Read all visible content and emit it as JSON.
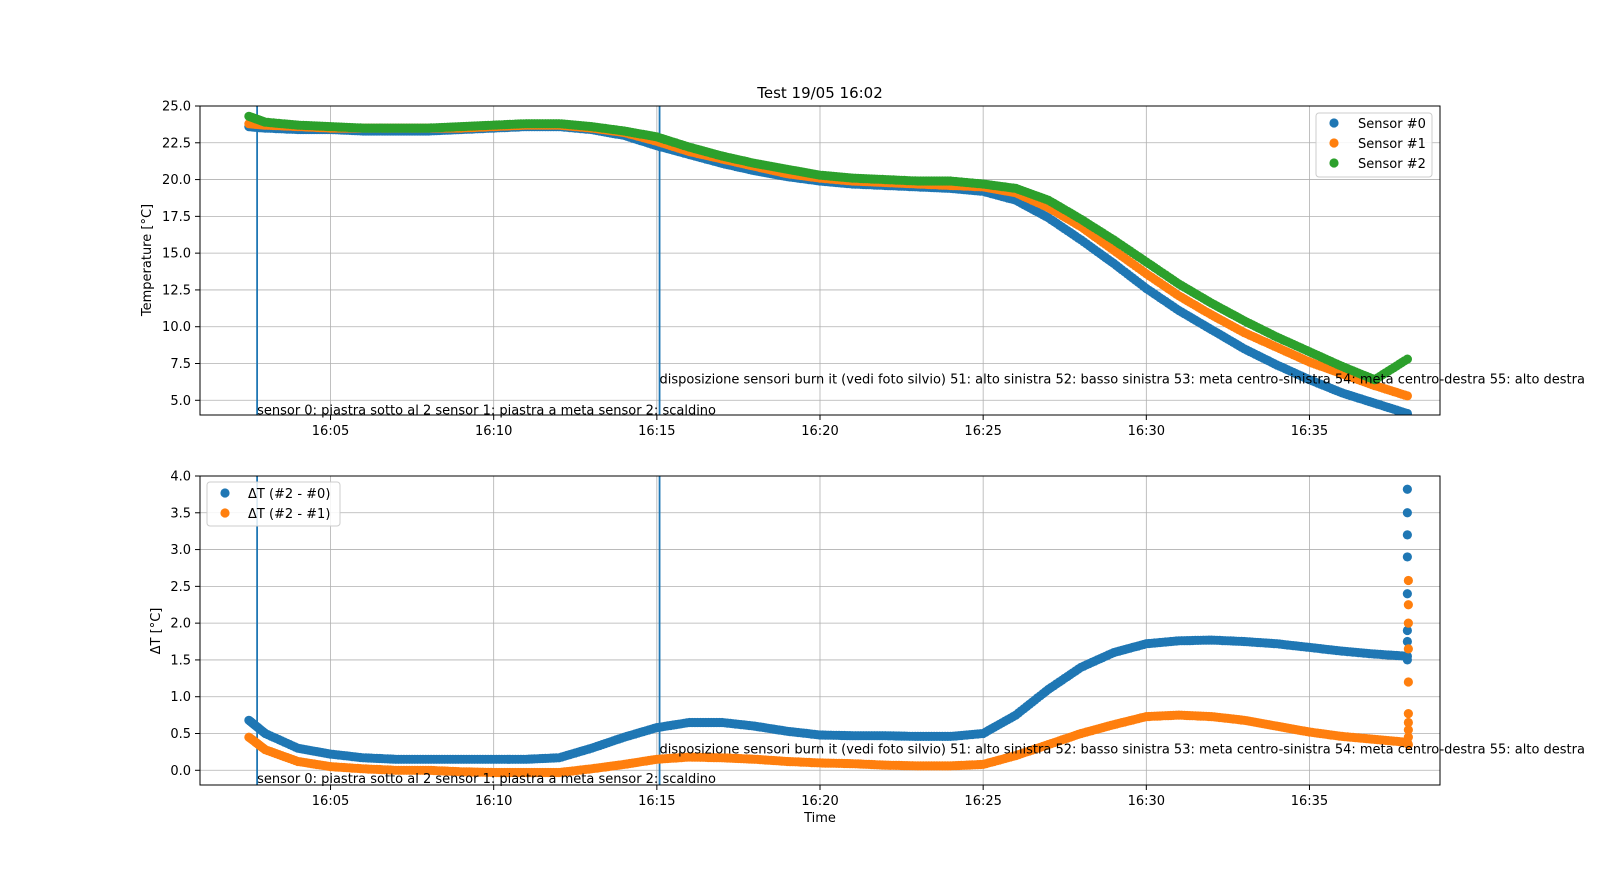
{
  "chart_data": [
    {
      "type": "scatter",
      "title": "Test 19/05 16:02",
      "xlabel": "",
      "ylabel": "Temperature [°C]",
      "xlim": [
        "16:01",
        "16:39"
      ],
      "ylim": [
        4.0,
        25.0
      ],
      "yticks": [
        "5.0",
        "7.5",
        "10.0",
        "12.5",
        "15.0",
        "17.5",
        "20.0",
        "22.5",
        "25.0"
      ],
      "xticks": [
        "16:05",
        "16:10",
        "16:15",
        "16:20",
        "16:25",
        "16:30",
        "16:35"
      ],
      "grid": true,
      "legend": "top-right",
      "x": [
        "16:02:30",
        "16:03",
        "16:04",
        "16:05",
        "16:06",
        "16:07",
        "16:08",
        "16:09",
        "16:10",
        "16:11",
        "16:12",
        "16:13",
        "16:14",
        "16:15",
        "16:16",
        "16:17",
        "16:18",
        "16:19",
        "16:20",
        "16:21",
        "16:22",
        "16:23",
        "16:24",
        "16:25",
        "16:26",
        "16:27",
        "16:28",
        "16:29",
        "16:30",
        "16:31",
        "16:32",
        "16:33",
        "16:34",
        "16:35",
        "16:36",
        "16:37",
        "16:38"
      ],
      "series": [
        {
          "name": "Sensor #0",
          "color": "#1f77b4",
          "values": [
            23.6,
            23.5,
            23.4,
            23.4,
            23.3,
            23.3,
            23.3,
            23.4,
            23.5,
            23.6,
            23.6,
            23.4,
            23.0,
            22.3,
            21.7,
            21.1,
            20.6,
            20.2,
            19.9,
            19.7,
            19.6,
            19.5,
            19.4,
            19.2,
            18.6,
            17.4,
            15.9,
            14.3,
            12.6,
            11.1,
            9.8,
            8.5,
            7.4,
            6.4,
            5.5,
            4.8,
            4.1
          ]
        },
        {
          "name": "Sensor #1",
          "color": "#ff7f0e",
          "values": [
            23.8,
            23.7,
            23.6,
            23.5,
            23.5,
            23.5,
            23.5,
            23.5,
            23.6,
            23.7,
            23.7,
            23.5,
            23.2,
            22.6,
            21.9,
            21.4,
            20.9,
            20.4,
            20.1,
            19.9,
            19.8,
            19.7,
            19.6,
            19.5,
            19.1,
            18.1,
            16.8,
            15.2,
            13.6,
            12.1,
            10.8,
            9.6,
            8.6,
            7.6,
            6.8,
            6.0,
            5.3
          ]
        },
        {
          "name": "Sensor #2",
          "color": "#2ca02c",
          "values": [
            24.3,
            23.9,
            23.7,
            23.6,
            23.5,
            23.5,
            23.5,
            23.6,
            23.7,
            23.8,
            23.8,
            23.6,
            23.3,
            22.9,
            22.2,
            21.6,
            21.1,
            20.7,
            20.3,
            20.1,
            20.0,
            19.9,
            19.9,
            19.7,
            19.4,
            18.6,
            17.3,
            15.9,
            14.4,
            12.9,
            11.6,
            10.4,
            9.3,
            8.3,
            7.3,
            6.4,
            7.8
          ]
        }
      ],
      "annotations": [
        {
          "text": "sensor 0: piastra sotto al 2 sensor 1: piastra a meta sensor 2: scaldino",
          "x": "16:02:45",
          "y": 3.9
        },
        {
          "text": "disposizione sensori burn it (vedi foto silvio) 51: alto sinistra 52: basso sinistra 53: meta centro-sinistra 54: meta centro-destra 55: alto destra",
          "x": "16:15:05",
          "y": 6.0
        }
      ],
      "vlines": [
        "16:02:45",
        "16:15:05"
      ]
    },
    {
      "type": "scatter",
      "title": "",
      "xlabel": "Time",
      "ylabel": "ΔT [°C]",
      "xlim": [
        "16:01",
        "16:39"
      ],
      "ylim": [
        -0.2,
        4.0
      ],
      "yticks": [
        "0.0",
        "0.5",
        "1.0",
        "1.5",
        "2.0",
        "2.5",
        "3.0",
        "3.5",
        "4.0"
      ],
      "xticks": [
        "16:05",
        "16:10",
        "16:15",
        "16:20",
        "16:25",
        "16:30",
        "16:35"
      ],
      "grid": true,
      "legend": "top-left",
      "x": [
        "16:02:30",
        "16:03",
        "16:04",
        "16:05",
        "16:06",
        "16:07",
        "16:08",
        "16:09",
        "16:10",
        "16:11",
        "16:12",
        "16:13",
        "16:14",
        "16:15",
        "16:16",
        "16:17",
        "16:18",
        "16:19",
        "16:20",
        "16:21",
        "16:22",
        "16:23",
        "16:24",
        "16:25",
        "16:26",
        "16:27",
        "16:28",
        "16:29",
        "16:30",
        "16:31",
        "16:32",
        "16:33",
        "16:34",
        "16:35",
        "16:36",
        "16:37",
        "16:38"
      ],
      "series": [
        {
          "name": "ΔT (#2 - #0)",
          "color": "#1f77b4",
          "values": [
            0.68,
            0.5,
            0.3,
            0.22,
            0.17,
            0.15,
            0.15,
            0.15,
            0.15,
            0.15,
            0.17,
            0.3,
            0.45,
            0.58,
            0.65,
            0.65,
            0.6,
            0.53,
            0.48,
            0.47,
            0.47,
            0.46,
            0.46,
            0.5,
            0.75,
            1.1,
            1.4,
            1.6,
            1.72,
            1.76,
            1.77,
            1.75,
            1.72,
            1.67,
            1.62,
            1.58,
            1.55
          ]
        },
        {
          "name": "ΔT (#2 - #1)",
          "color": "#ff7f0e",
          "values": [
            0.45,
            0.28,
            0.12,
            0.05,
            0.02,
            0.0,
            0.0,
            -0.02,
            -0.03,
            -0.03,
            -0.03,
            0.02,
            0.08,
            0.15,
            0.18,
            0.17,
            0.15,
            0.12,
            0.1,
            0.09,
            0.07,
            0.06,
            0.06,
            0.08,
            0.2,
            0.35,
            0.5,
            0.62,
            0.73,
            0.75,
            0.73,
            0.68,
            0.6,
            0.52,
            0.46,
            0.42,
            0.38
          ]
        }
      ],
      "tail": {
        "x": "16:38",
        "series0": [
          1.5,
          1.75,
          1.9,
          2.4,
          2.9,
          3.2,
          3.5,
          3.82
        ],
        "series1": [
          0.35,
          0.45,
          0.55,
          0.65,
          0.77,
          1.2,
          1.65,
          2.0,
          2.25,
          2.58
        ]
      },
      "annotations": [
        {
          "text": "sensor 0: piastra sotto al 2 sensor 1: piastra a meta sensor 2: scaldino",
          "x": "16:02:45",
          "y": -0.2
        },
        {
          "text": "disposizione sensori burn it (vedi foto silvio) 51: alto sinistra 52: basso sinistra 53: meta centro-sinistra 54: meta centro-destra 55: alto destra",
          "x": "16:15:05",
          "y": 0.2
        }
      ],
      "vlines": [
        "16:02:45",
        "16:15:05"
      ]
    }
  ]
}
